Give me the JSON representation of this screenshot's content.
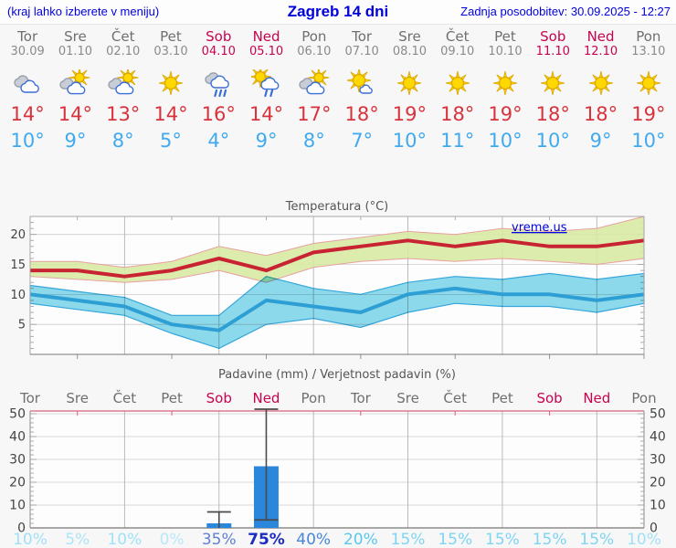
{
  "header": {
    "left": "(kraj lahko izberete v meniju)",
    "title": "Zagreb 14 dni",
    "right": "Zadnja posodobitev: 30.09.2025 - 12:27"
  },
  "colors": {
    "header_blue": "#0000dd",
    "day_gray": "#6f6f6f",
    "date_gray": "#8a8a8a",
    "weekend_red": "#c70350",
    "tmax_red": "#d8323c",
    "tmin_blue": "#41aaee",
    "chart_title_gray": "#555555",
    "tick_label_gray": "#444444",
    "temp_max_line": "#c82333",
    "temp_max_band": "#d7e9a0",
    "temp_max_band_edge": "#e8a0a0",
    "temp_min_line": "#2e9fd4",
    "temp_min_band": "#8edbee",
    "bar_blue": "#2b87dc",
    "whisker_gray": "#4a4a4a",
    "precip_top_axis_pink": "#d96080",
    "watermark_blue": "#0000e0"
  },
  "days": [
    {
      "name": "Tor",
      "date": "30.09",
      "weekend": false,
      "icon": "cloudy",
      "tmax": "14°",
      "tmin": "10°",
      "prob": "10%",
      "prob_color": "#a0e1f7",
      "prob_bold": false
    },
    {
      "name": "Sre",
      "date": "01.10",
      "weekend": false,
      "icon": "partly-cloudy",
      "tmax": "14°",
      "tmin": "9°",
      "prob": "5%",
      "prob_color": "#ace4f8",
      "prob_bold": false
    },
    {
      "name": "Čet",
      "date": "02.10",
      "weekend": false,
      "icon": "partly-cloudy",
      "tmax": "13°",
      "tmin": "8°",
      "prob": "10%",
      "prob_color": "#a0e1f7",
      "prob_bold": false
    },
    {
      "name": "Pet",
      "date": "03.10",
      "weekend": false,
      "icon": "sunny",
      "tmax": "14°",
      "tmin": "5°",
      "prob": "0%",
      "prob_color": "#b9e8f9",
      "prob_bold": false
    },
    {
      "name": "Sob",
      "date": "04.10",
      "weekend": true,
      "icon": "rain",
      "tmax": "16°",
      "tmin": "4°",
      "prob": "35%",
      "prob_color": "#6080d5",
      "prob_bold": false
    },
    {
      "name": "Ned",
      "date": "05.10",
      "weekend": true,
      "icon": "sun-rain",
      "tmax": "14°",
      "tmin": "9°",
      "prob": "75%",
      "prob_color": "#1b2bc3",
      "prob_bold": true
    },
    {
      "name": "Pon",
      "date": "06.10",
      "weekend": false,
      "icon": "partly-cloudy",
      "tmax": "17°",
      "tmin": "8°",
      "prob": "40%",
      "prob_color": "#4687d9",
      "prob_bold": false
    },
    {
      "name": "Tor",
      "date": "07.10",
      "weekend": false,
      "icon": "mostly-sunny",
      "tmax": "18°",
      "tmin": "7°",
      "prob": "20%",
      "prob_color": "#5ac7ee",
      "prob_bold": false
    },
    {
      "name": "Sre",
      "date": "08.10",
      "weekend": false,
      "icon": "sunny",
      "tmax": "19°",
      "tmin": "10°",
      "prob": "15%",
      "prob_color": "#7fd4f2",
      "prob_bold": false
    },
    {
      "name": "Čet",
      "date": "09.10",
      "weekend": false,
      "icon": "sunny",
      "tmax": "18°",
      "tmin": "11°",
      "prob": "15%",
      "prob_color": "#7fd4f2",
      "prob_bold": false
    },
    {
      "name": "Pet",
      "date": "10.10",
      "weekend": false,
      "icon": "sunny",
      "tmax": "19°",
      "tmin": "10°",
      "prob": "15%",
      "prob_color": "#7fd4f2",
      "prob_bold": false
    },
    {
      "name": "Sob",
      "date": "11.10",
      "weekend": true,
      "icon": "sunny",
      "tmax": "18°",
      "tmin": "10°",
      "prob": "15%",
      "prob_color": "#7fd4f2",
      "prob_bold": false
    },
    {
      "name": "Ned",
      "date": "12.10",
      "weekend": true,
      "icon": "sunny",
      "tmax": "18°",
      "tmin": "9°",
      "prob": "15%",
      "prob_color": "#7fd4f2",
      "prob_bold": false
    },
    {
      "name": "Pon",
      "date": "13.10",
      "weekend": false,
      "icon": "sunny",
      "tmax": "19°",
      "tmin": "10°",
      "prob": "10%",
      "prob_color": "#a0e1f7",
      "prob_bold": false
    }
  ],
  "chart_data": [
    {
      "type": "line",
      "title": "Temperatura (°C)",
      "watermark": "vreme.us",
      "x_labels": [
        "Tor",
        "Sre",
        "Čet",
        "Pet",
        "Sob",
        "Ned",
        "Pon",
        "Tor",
        "Sre",
        "Čet",
        "Pet",
        "Sob",
        "Ned",
        "Pon"
      ],
      "ylim": [
        0,
        23
      ],
      "yticks": [
        5,
        10,
        15,
        20
      ],
      "grid_days": [
        2,
        4,
        6,
        8,
        10,
        12
      ],
      "series": [
        {
          "name": "max_temp",
          "values": [
            14,
            14,
            13,
            14,
            16,
            14,
            17,
            18,
            19,
            18,
            19,
            18,
            18,
            19
          ]
        },
        {
          "name": "min_temp",
          "values": [
            10,
            9,
            8,
            5,
            4,
            9,
            8,
            7,
            10,
            11,
            10,
            10,
            9,
            10
          ]
        },
        {
          "name": "max_range_high",
          "values": [
            15.5,
            15.5,
            14.5,
            15.5,
            18,
            16.5,
            18.5,
            19.5,
            20.5,
            20,
            21,
            20.5,
            21,
            23
          ]
        },
        {
          "name": "max_range_low",
          "values": [
            13,
            12.5,
            12,
            12.5,
            14,
            12,
            14.5,
            15.5,
            16,
            15.5,
            16,
            15.5,
            15,
            16
          ]
        },
        {
          "name": "min_range_high",
          "values": [
            11.5,
            10.5,
            9.5,
            6.5,
            6.5,
            13,
            11,
            10,
            12,
            13,
            12.5,
            13.5,
            12.5,
            13.5
          ]
        },
        {
          "name": "min_range_low",
          "values": [
            8.5,
            7.5,
            6.5,
            3.5,
            1,
            5,
            6,
            4.5,
            7,
            8.5,
            8,
            8,
            7,
            8.5
          ]
        }
      ]
    },
    {
      "type": "bar",
      "title": "Padavine (mm) / Verjetnost padavin (%)",
      "categories": [
        "Tor",
        "Sre",
        "Čet",
        "Pet",
        "Sob",
        "Ned",
        "Pon",
        "Tor",
        "Sre",
        "Čet",
        "Pet",
        "Sob",
        "Ned",
        "Pon"
      ],
      "values": [
        0,
        0,
        0,
        0,
        2,
        27,
        0,
        0,
        0,
        0,
        0,
        0,
        0,
        0
      ],
      "whiskers": [
        null,
        null,
        null,
        null,
        [
          0,
          7
        ],
        [
          3.5,
          52
        ],
        null,
        null,
        null,
        null,
        null,
        null,
        null,
        null
      ],
      "probabilities": [
        10,
        5,
        10,
        0,
        35,
        75,
        40,
        20,
        15,
        15,
        15,
        15,
        15,
        10
      ],
      "ylim": [
        0,
        51.2
      ],
      "yticks": [
        0,
        10,
        20,
        30,
        40,
        50
      ],
      "grid_days": [
        2,
        4,
        6,
        8,
        10,
        12
      ]
    }
  ]
}
